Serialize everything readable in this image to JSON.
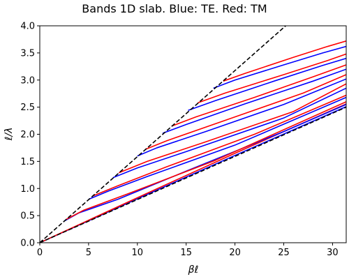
{
  "chart_data": {
    "type": "line",
    "title": "Bands 1D slab. Blue: TE. Red: TM",
    "xlabel": "βℓ",
    "ylabel": "ℓ/λ",
    "xlim": [
      0,
      31.4
    ],
    "ylim": [
      0,
      4.0
    ],
    "xticks": [
      0,
      5,
      10,
      15,
      20,
      25,
      30
    ],
    "yticks": [
      0.0,
      0.5,
      1.0,
      1.5,
      2.0,
      2.5,
      3.0,
      3.5,
      4.0
    ],
    "grid": false,
    "colors": {
      "te": "#0000ff",
      "tm": "#ff0000",
      "light_line": "#000000"
    },
    "light_lines": [
      {
        "x": [
          0,
          25.2
        ],
        "y": [
          0,
          4.0
        ]
      },
      {
        "x": [
          0,
          31.4
        ],
        "y": [
          0,
          2.5
        ]
      }
    ],
    "series": [
      {
        "mode": "te",
        "x": [
          0,
          10,
          20,
          31.4
        ],
        "y": [
          0,
          0.81,
          1.61,
          2.51
        ]
      },
      {
        "mode": "tm",
        "x": [
          0,
          10,
          20,
          31.4
        ],
        "y": [
          0,
          0.83,
          1.65,
          2.56
        ]
      },
      {
        "mode": "te",
        "x": [
          2.5,
          4,
          8,
          15,
          25,
          31.4
        ],
        "y": [
          0.4,
          0.55,
          0.8,
          1.32,
          2.05,
          2.55
        ]
      },
      {
        "mode": "tm",
        "x": [
          2.7,
          4.5,
          9,
          18,
          31.4
        ],
        "y": [
          0.43,
          0.6,
          0.9,
          1.52,
          2.6
        ]
      },
      {
        "mode": "te",
        "x": [
          5,
          7,
          11,
          20,
          31.4
        ],
        "y": [
          0.8,
          0.95,
          1.22,
          1.8,
          2.68
        ]
      },
      {
        "mode": "tm",
        "x": [
          5.4,
          8,
          13,
          22,
          31.4
        ],
        "y": [
          0.86,
          1.05,
          1.4,
          2.0,
          2.72
        ]
      },
      {
        "mode": "te",
        "x": [
          7.5,
          10,
          15,
          25,
          31.4
        ],
        "y": [
          1.2,
          1.38,
          1.68,
          2.3,
          2.85
        ]
      },
      {
        "mode": "tm",
        "x": [
          8.1,
          11,
          17,
          26,
          31.4
        ],
        "y": [
          1.29,
          1.5,
          1.86,
          2.42,
          2.93
        ]
      },
      {
        "mode": "te",
        "x": [
          10,
          12,
          17,
          25,
          31.4
        ],
        "y": [
          1.6,
          1.75,
          2.05,
          2.55,
          3.02
        ]
      },
      {
        "mode": "tm",
        "x": [
          10.8,
          13,
          20,
          27,
          31.4
        ],
        "y": [
          1.72,
          1.88,
          2.32,
          2.76,
          3.1
        ]
      },
      {
        "mode": "te",
        "x": [
          12.6,
          15,
          21,
          28,
          31.4
        ],
        "y": [
          2.02,
          2.18,
          2.56,
          2.98,
          3.2
        ]
      },
      {
        "mode": "tm",
        "x": [
          13.5,
          16,
          22,
          28,
          31.4
        ],
        "y": [
          2.15,
          2.32,
          2.68,
          3.06,
          3.28
        ]
      },
      {
        "mode": "te",
        "x": [
          15.2,
          18,
          24,
          29,
          31.4
        ],
        "y": [
          2.44,
          2.62,
          2.98,
          3.27,
          3.4
        ]
      },
      {
        "mode": "tm",
        "x": [
          16.2,
          19,
          25,
          29.5,
          31.4
        ],
        "y": [
          2.58,
          2.76,
          3.1,
          3.36,
          3.48
        ]
      },
      {
        "mode": "te",
        "x": [
          17.8,
          20,
          25,
          29,
          31.4
        ],
        "y": [
          2.85,
          3.0,
          3.28,
          3.5,
          3.62
        ]
      },
      {
        "mode": "tm",
        "x": [
          18.8,
          21,
          26,
          29.5,
          31.4
        ],
        "y": [
          2.98,
          3.12,
          3.42,
          3.62,
          3.72
        ]
      }
    ]
  }
}
